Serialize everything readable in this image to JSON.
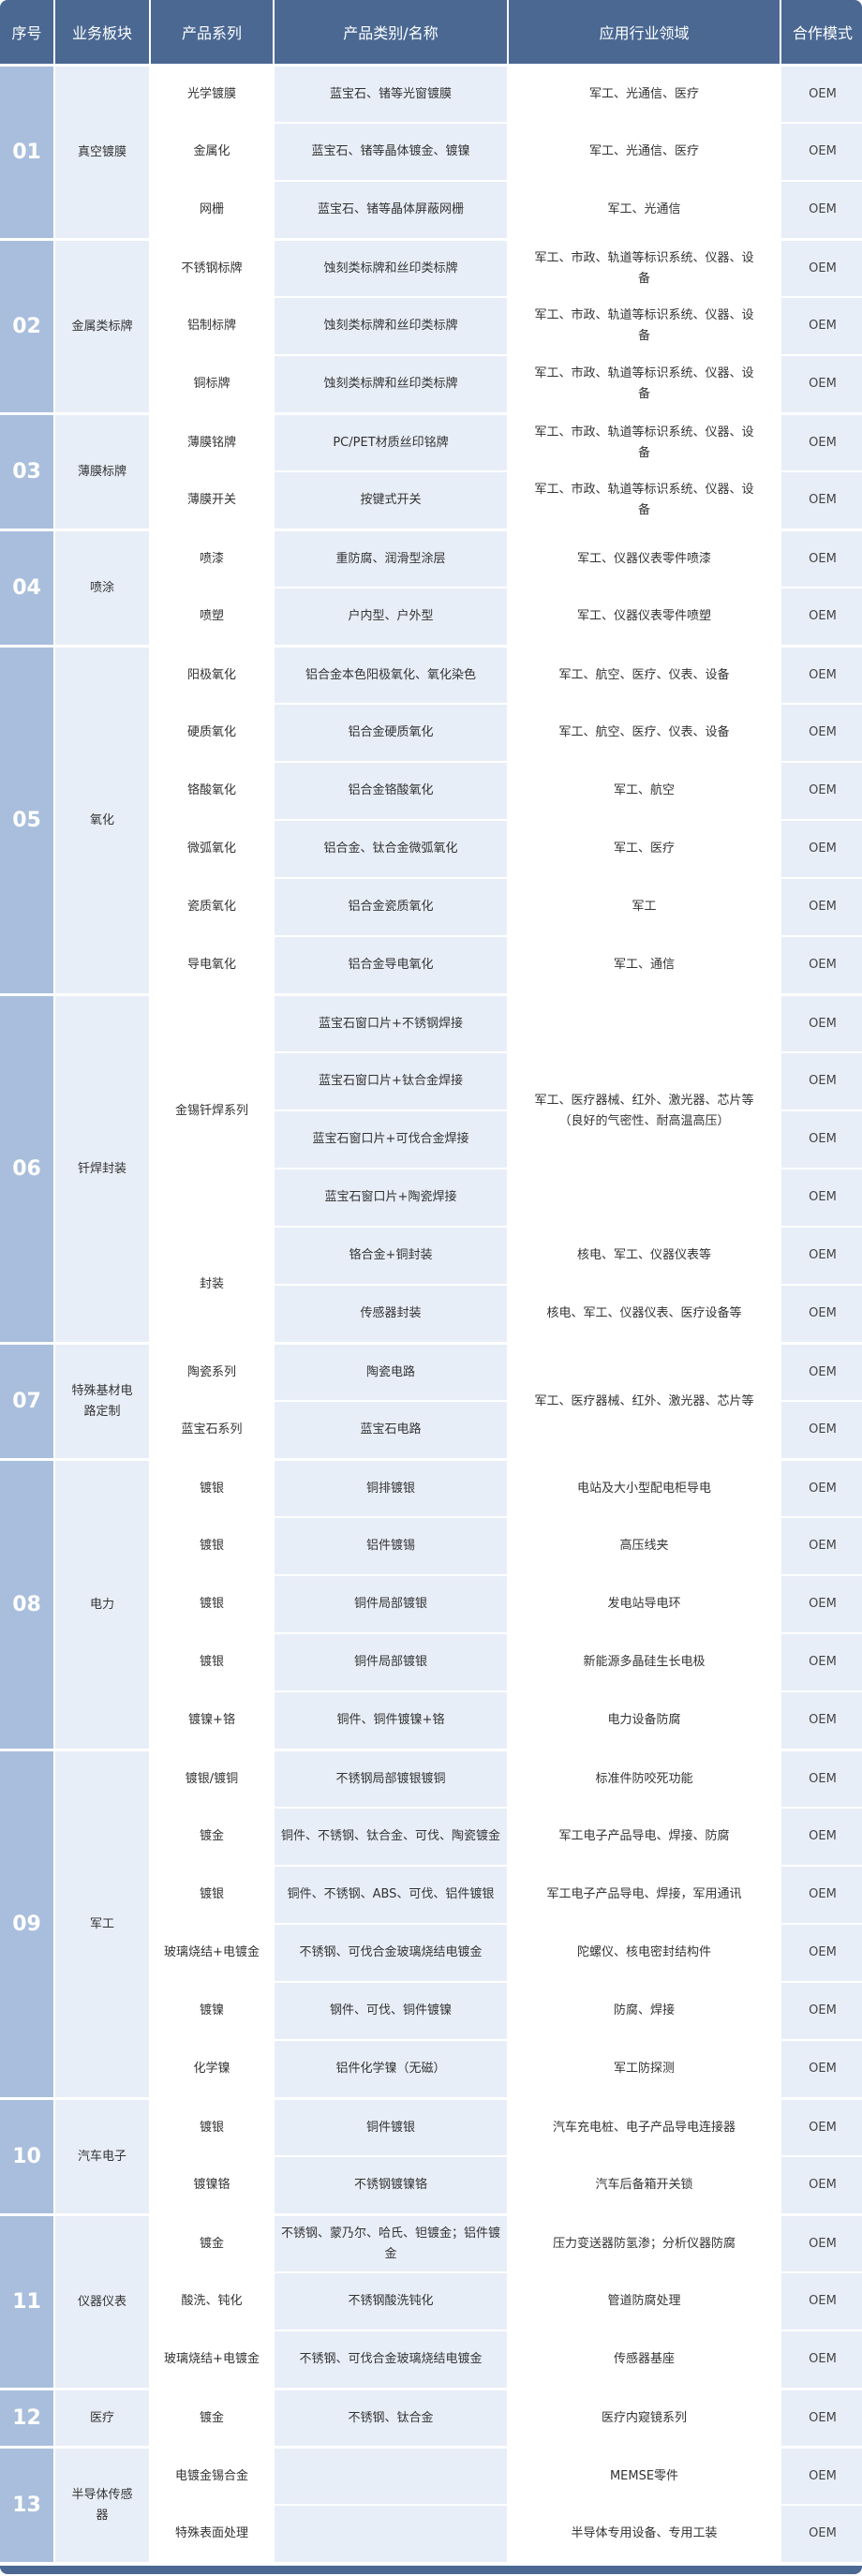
{
  "header": [
    "序号",
    "业务板块",
    "产品系列",
    "产品类别/名称",
    "应用行业领域",
    "合作模式"
  ],
  "colors": {
    "header_bg": "#4a6892",
    "index_bg": "#a9bedc",
    "light_cell": "#e8eef7",
    "white_cell": "#ffffff"
  },
  "groups": [
    {
      "index": "01",
      "sector": "真空镀膜",
      "rows": [
        [
          "光学镀膜",
          "蓝宝石、锗等光窗镀膜",
          "军工、光通信、医疗",
          "OEM"
        ],
        [
          "金属化",
          "蓝宝石、锗等晶体镀金、镀镍",
          "军工、光通信、医疗",
          "OEM"
        ],
        [
          "网栅",
          "蓝宝石、锗等晶体屏蔽网栅",
          "军工、光通信",
          "OEM"
        ]
      ]
    },
    {
      "index": "02",
      "sector": "金属类标牌",
      "rows": [
        [
          "不锈钢标牌",
          "蚀刻类标牌和丝印类标牌",
          "军工、市政、轨道等标识系统、仪器、设备",
          "OEM"
        ],
        [
          "铝制标牌",
          "蚀刻类标牌和丝印类标牌",
          "军工、市政、轨道等标识系统、仪器、设备",
          "OEM"
        ],
        [
          "铜标牌",
          "蚀刻类标牌和丝印类标牌",
          "军工、市政、轨道等标识系统、仪器、设备",
          "OEM"
        ]
      ]
    },
    {
      "index": "03",
      "sector": "薄膜标牌",
      "rows": [
        [
          "薄膜铭牌",
          "PC/PET材质丝印铭牌",
          "军工、市政、轨道等标识系统、仪器、设备",
          "OEM"
        ],
        [
          "薄膜开关",
          "按键式开关",
          "军工、市政、轨道等标识系统、仪器、设备",
          "OEM"
        ]
      ]
    },
    {
      "index": "04",
      "sector": "喷涂",
      "rows": [
        [
          "喷漆",
          "重防腐、润滑型涂层",
          "军工、仪器仪表零件喷漆",
          "OEM"
        ],
        [
          "喷塑",
          "户内型、户外型",
          "军工、仪器仪表零件喷塑",
          "OEM"
        ]
      ]
    },
    {
      "index": "05",
      "sector": "氧化",
      "rows": [
        [
          "阳极氧化",
          "铝合金本色阳极氧化、氧化染色",
          "军工、航空、医疗、仪表、设备",
          "OEM"
        ],
        [
          "硬质氧化",
          "铝合金硬质氧化",
          "军工、航空、医疗、仪表、设备",
          "OEM"
        ],
        [
          "铬酸氧化",
          "铝合金铬酸氧化",
          "军工、航空",
          "OEM"
        ],
        [
          "微弧氧化",
          "铝合金、钛合金微弧氧化",
          "军工、医疗",
          "OEM"
        ],
        [
          "瓷质氧化",
          "铝合金瓷质氧化",
          "军工",
          "OEM"
        ],
        [
          "导电氧化",
          "铝合金导电氧化",
          "军工、通信",
          "OEM"
        ]
      ]
    },
    {
      "index": "06",
      "sector": "钎焊封装",
      "rows": [
        [
          "金锡钎焊系列",
          "蓝宝石窗口片+不锈钢焊接",
          "军工、医疗器械、红外、激光器、芯片等（良好的气密性、耐高温高压）",
          "OEM"
        ],
        [
          null,
          "蓝宝石窗口片+钛合金焊接",
          null,
          "OEM"
        ],
        [
          null,
          "蓝宝石窗口片+可伐合金焊接",
          null,
          "OEM"
        ],
        [
          null,
          "蓝宝石窗口片+陶瓷焊接",
          null,
          "OEM"
        ],
        [
          "封装",
          "铬合金+铜封装",
          "核电、军工、仪器仪表等",
          "OEM"
        ],
        [
          null,
          "传感器封装",
          "核电、军工、仪器仪表、医疗设备等",
          "OEM"
        ]
      ]
    },
    {
      "index": "07",
      "sector": "特殊基材电路定制",
      "rows": [
        [
          "陶瓷系列",
          "陶瓷电路",
          "军工、医疗器械、红外、激光器、芯片等",
          "OEM"
        ],
        [
          "蓝宝石系列",
          "蓝宝石电路",
          null,
          "OEM"
        ]
      ]
    },
    {
      "index": "08",
      "sector": "电力",
      "rows": [
        [
          "镀银",
          "铜排镀银",
          "电站及大小型配电柜导电",
          "OEM"
        ],
        [
          "镀银",
          "铝件镀锡",
          "高压线夹",
          "OEM"
        ],
        [
          "镀银",
          "铜件局部镀银",
          "发电站导电环",
          "OEM"
        ],
        [
          "镀银",
          "铜件局部镀银",
          "新能源多晶硅生长电极",
          "OEM"
        ],
        [
          "镀镍+铬",
          "铜件、铜件镀镍+铬",
          "电力设备防腐",
          "OEM"
        ]
      ]
    },
    {
      "index": "09",
      "sector": "军工",
      "rows": [
        [
          "镀银/镀铜",
          "不锈钢局部镀银镀铜",
          "标准件防咬死功能",
          "OEM"
        ],
        [
          "镀金",
          "铜件、不锈钢、钛合金、可伐、陶瓷镀金",
          "军工电子产品导电、焊接、防腐",
          "OEM"
        ],
        [
          "镀银",
          "铜件、不锈钢、ABS、可伐、铝件镀银",
          "军工电子产品导电、焊接，军用通讯",
          "OEM"
        ],
        [
          "玻璃烧结+电镀金",
          "不锈钢、可伐合金玻璃烧结电镀金",
          "陀螺仪、核电密封结构件",
          "OEM"
        ],
        [
          "镀镍",
          "钢件、可伐、铜件镀镍",
          "防腐、焊接",
          "OEM"
        ],
        [
          "化学镍",
          "铝件化学镍（无磁）",
          "军工防探测",
          "OEM"
        ]
      ]
    },
    {
      "index": "10",
      "sector": "汽车电子",
      "rows": [
        [
          "镀银",
          "铜件镀银",
          "汽车充电桩、电子产品导电连接器",
          "OEM"
        ],
        [
          "镀镍铬",
          "不锈钢镀镍铬",
          "汽车后备箱开关锁",
          "OEM"
        ]
      ]
    },
    {
      "index": "11",
      "sector": "仪器仪表",
      "rows": [
        [
          "镀金",
          "不锈钢、蒙乃尔、哈氏、钽镀金；铝件镀金",
          "压力变送器防氢渗；分析仪器防腐",
          "OEM"
        ],
        [
          "酸洗、钝化",
          "不锈钢酸洗钝化",
          "管道防腐处理",
          "OEM"
        ],
        [
          "玻璃烧结+电镀金",
          "不锈钢、可伐合金玻璃烧结电镀金",
          "传感器基座",
          "OEM"
        ]
      ]
    },
    {
      "index": "12",
      "sector": "医疗",
      "rows": [
        [
          "镀金",
          "不锈钢、钛合金",
          "医疗内窥镜系列",
          "OEM"
        ]
      ]
    },
    {
      "index": "13",
      "sector": "半导体传感器",
      "rows": [
        [
          "电镀金锡合金",
          "",
          "MEMSE零件",
          "OEM"
        ],
        [
          "特殊表面处理",
          "",
          "半导体专用设备、专用工装",
          "OEM"
        ]
      ]
    }
  ]
}
